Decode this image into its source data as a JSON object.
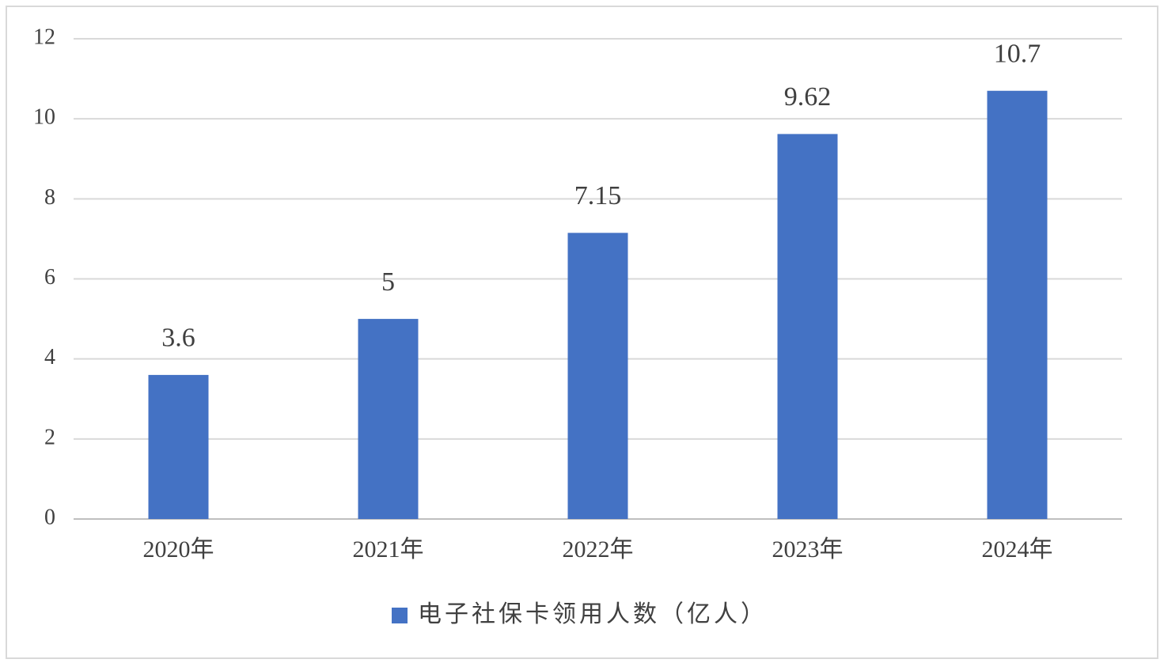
{
  "chart_data": {
    "type": "bar",
    "categories": [
      "2020年",
      "2021年",
      "2022年",
      "2023年",
      "2024年"
    ],
    "series": [
      {
        "name": "电子社保卡领用人数（亿人）",
        "color": "#4472c4",
        "values": [
          3.6,
          5,
          7.15,
          9.62,
          10.7
        ]
      }
    ],
    "ylim": [
      0,
      12
    ],
    "yticks": [
      0,
      2,
      4,
      6,
      8,
      10,
      12
    ],
    "grid": true,
    "legend": "bottom"
  }
}
